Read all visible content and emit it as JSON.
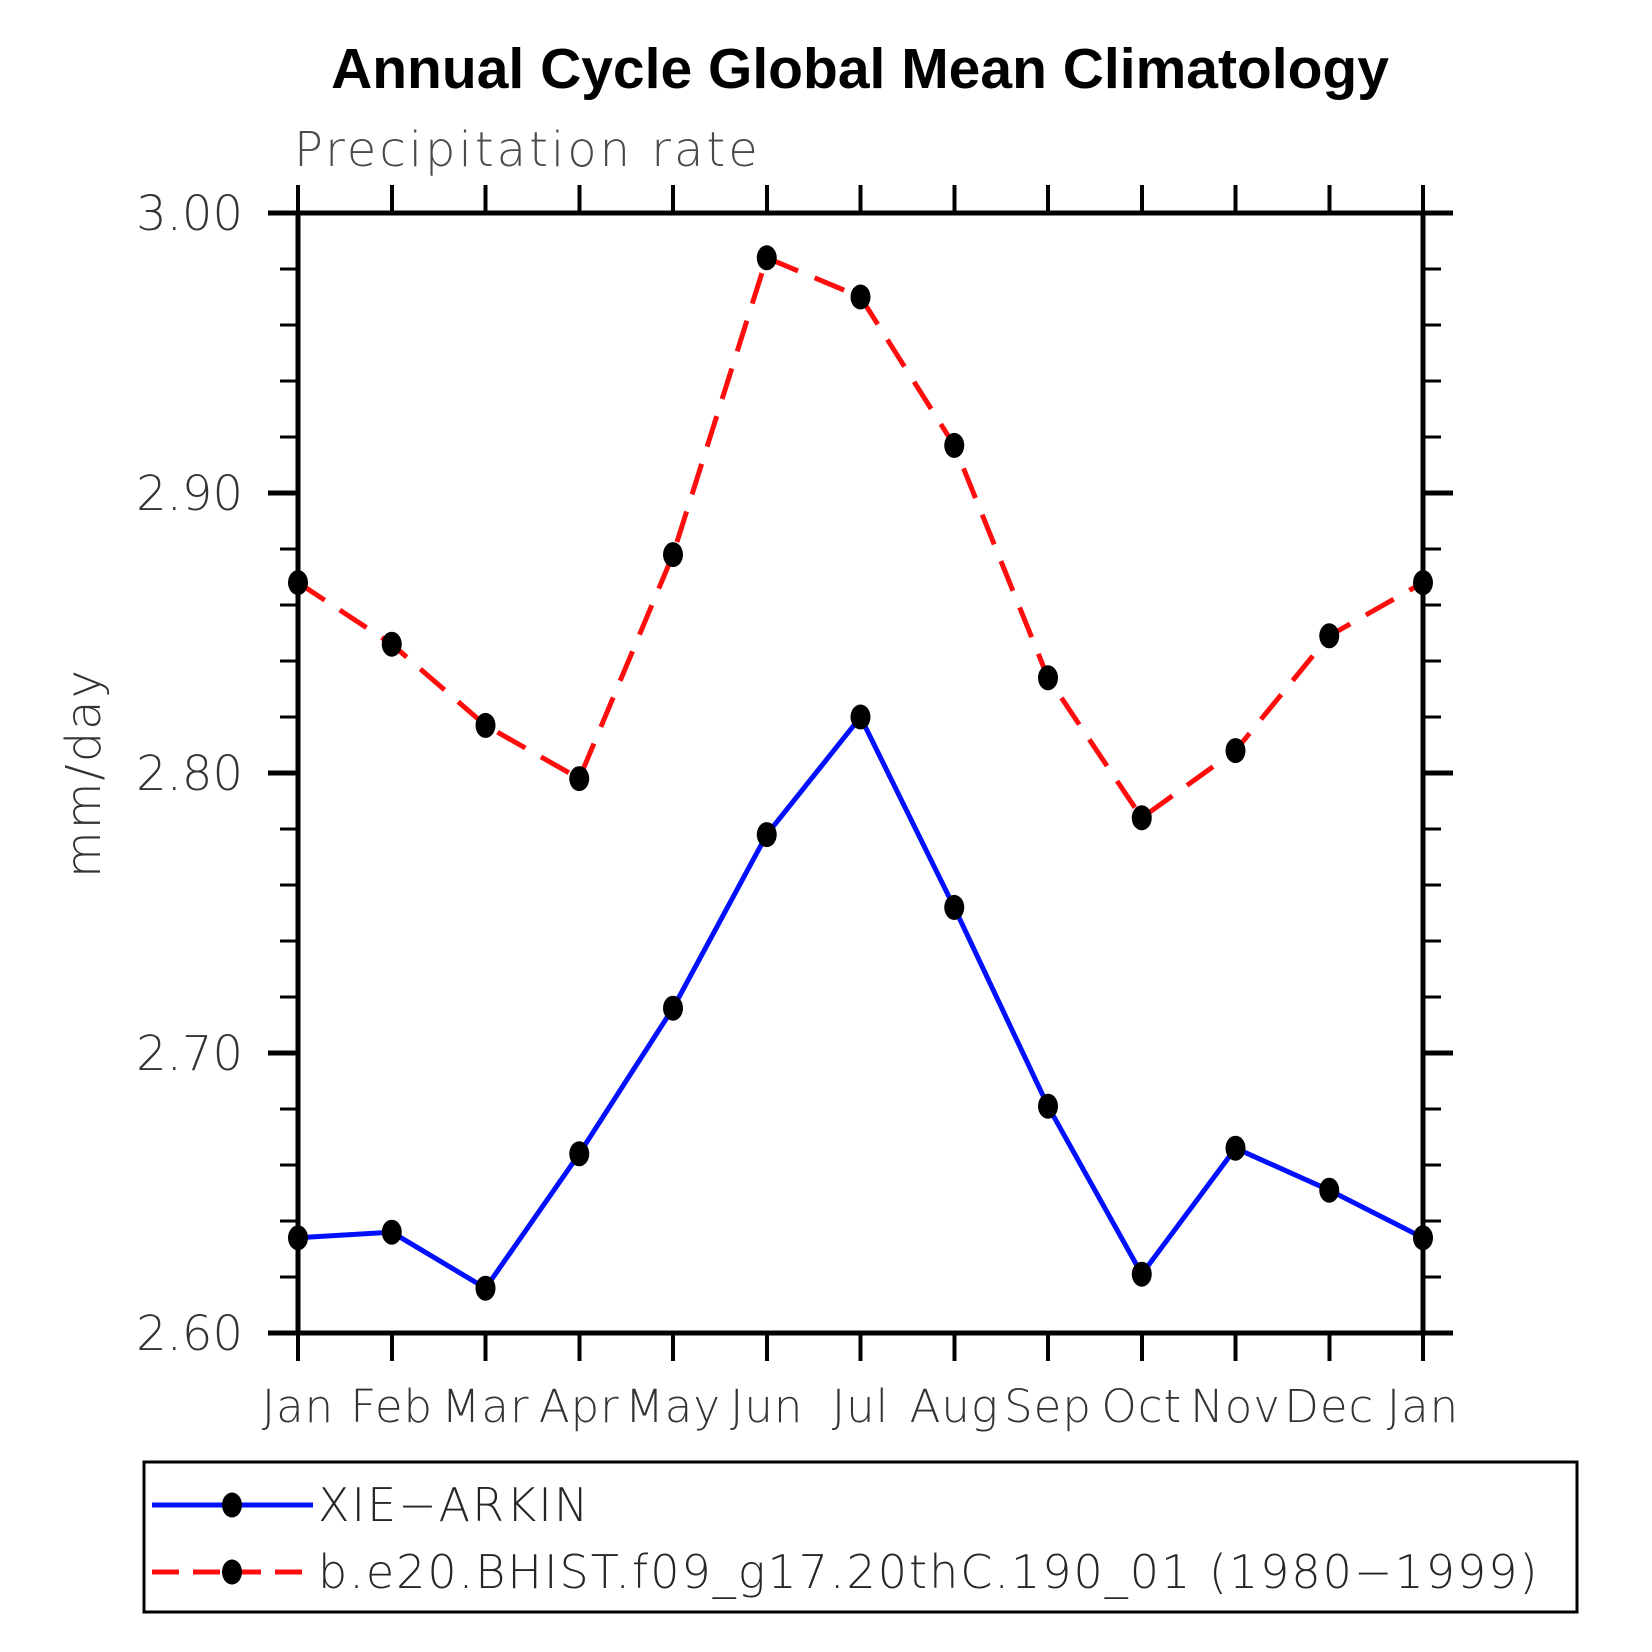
{
  "chart_data": {
    "type": "line",
    "title": "Annual Cycle Global Mean Climatology",
    "subtitle": "Precipitation rate",
    "ylabel": "mm/day",
    "ylim": [
      2.6,
      3.0
    ],
    "grid": false,
    "legend_position": "bottom-left-box",
    "categories": [
      "Jan",
      "Feb",
      "Mar",
      "Apr",
      "May",
      "Jun",
      "Jul",
      "Aug",
      "Sep",
      "Oct",
      "Nov",
      "Dec",
      "Jan"
    ],
    "yticks": [
      {
        "value": 3.0,
        "label": "3.00"
      },
      {
        "value": 2.9,
        "label": "2.90"
      },
      {
        "value": 2.8,
        "label": "2.80"
      },
      {
        "value": 2.7,
        "label": "2.70"
      },
      {
        "value": 2.6,
        "label": "2.60"
      }
    ],
    "minor_tick_interval": 0.02,
    "series": [
      {
        "name": "XIE−ARKIN",
        "color": "#0010ff",
        "line_style": "solid",
        "marker": "filled-circle",
        "marker_color": "#000000",
        "values": [
          2.634,
          2.636,
          2.616,
          2.664,
          2.716,
          2.778,
          2.82,
          2.752,
          2.681,
          2.621,
          2.666,
          2.651,
          2.634
        ]
      },
      {
        "name": "b.e20.BHIST.f09_g17.20thC.190_01 (1980−1999)",
        "color": "#ff0d0d",
        "line_style": "dashed",
        "marker": "filled-circle",
        "marker_color": "#000000",
        "values": [
          2.868,
          2.846,
          2.817,
          2.798,
          2.878,
          2.984,
          2.97,
          2.917,
          2.834,
          2.784,
          2.808,
          2.849,
          2.868
        ]
      }
    ]
  }
}
